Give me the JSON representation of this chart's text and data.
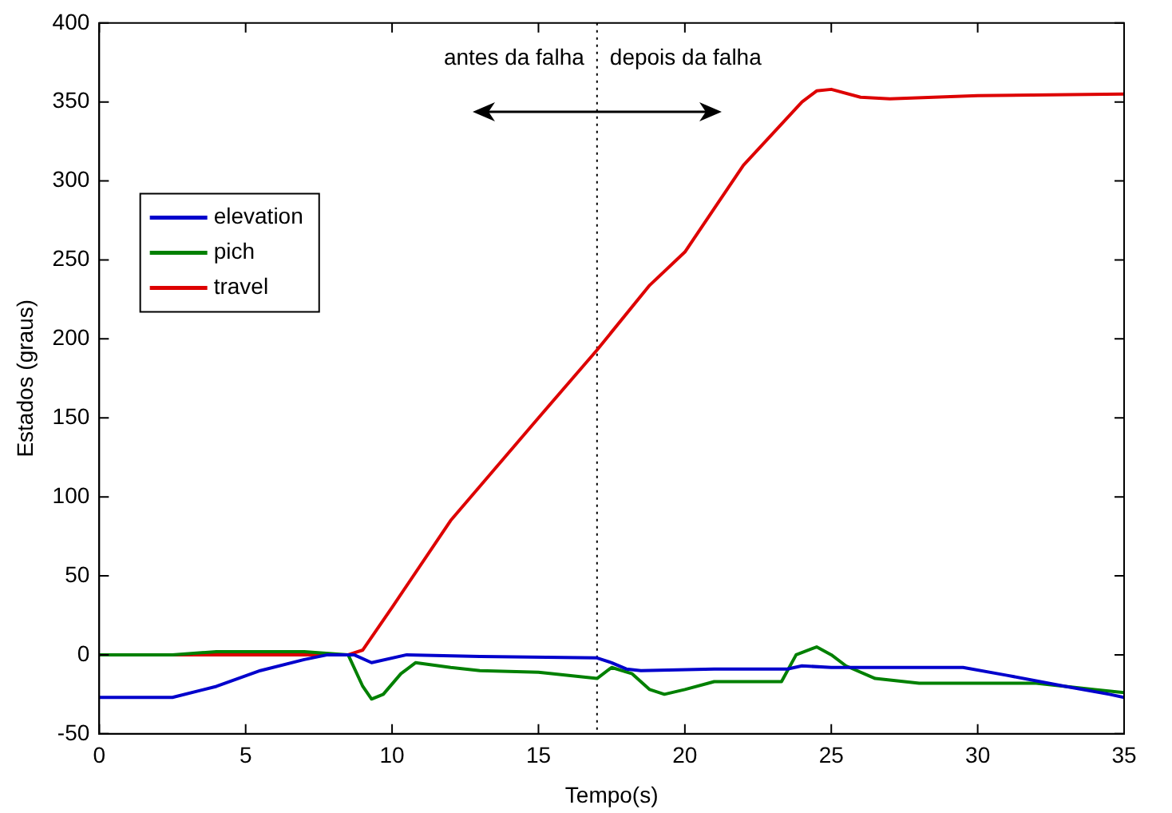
{
  "chart_data": {
    "type": "line",
    "xlabel": "Tempo(s)",
    "ylabel": "Estados (graus)",
    "xlim": [
      0,
      35
    ],
    "xticks": [
      0,
      5,
      10,
      15,
      20,
      25,
      30,
      35
    ],
    "ylim": [
      -50,
      400
    ],
    "yticks": [
      -50,
      0,
      50,
      100,
      150,
      200,
      250,
      300,
      350,
      400
    ],
    "grid": false,
    "legend": "top left",
    "marker": "none",
    "line_style": "solid",
    "series": [
      {
        "name": "elevation",
        "color": "#0000cc",
        "x": [
          0,
          2.5,
          4,
          5.5,
          7,
          7.8,
          8.7,
          9.3,
          10.5,
          13,
          17,
          17.5,
          18,
          18.5,
          21,
          23.5,
          24,
          25,
          29.5,
          31,
          33,
          34.5,
          35
        ],
        "values": [
          -27,
          -27,
          -20,
          -10,
          -3,
          0,
          0,
          -5,
          0,
          -1,
          -2,
          -5,
          -9,
          -10,
          -9,
          -9,
          -7,
          -8,
          -8,
          -13,
          -20,
          -25,
          -27
        ]
      },
      {
        "name": "pich",
        "color": "#008000",
        "x": [
          0,
          2.5,
          4,
          7,
          8.5,
          9,
          9.3,
          9.7,
          10.3,
          10.8,
          12,
          13,
          15,
          17,
          17.5,
          18.2,
          18.8,
          19.3,
          20,
          21,
          23.3,
          23.8,
          24.5,
          25,
          25.5,
          26.5,
          28,
          32,
          34,
          35
        ],
        "values": [
          0,
          0,
          2,
          2,
          0,
          -20,
          -28,
          -25,
          -12,
          -5,
          -8,
          -10,
          -11,
          -15,
          -8,
          -12,
          -22,
          -25,
          -22,
          -17,
          -17,
          0,
          5,
          0,
          -7,
          -15,
          -18,
          -18,
          -22,
          -24
        ]
      },
      {
        "name": "travel",
        "color": "#dd0000",
        "x": [
          0,
          8.5,
          9,
          10,
          12,
          15,
          17,
          18.8,
          20,
          22,
          24,
          24.5,
          25,
          26,
          27,
          30,
          35
        ],
        "values": [
          0,
          0,
          3,
          30,
          85,
          150,
          193,
          234,
          255,
          310,
          350,
          357,
          358,
          353,
          352,
          354,
          355
        ]
      }
    ],
    "ref_lines": [
      {
        "axis": "x",
        "value": 17,
        "label": null,
        "color": "#000000",
        "line_style": "dotted"
      }
    ],
    "annotations": [
      "antes da falha",
      "depois da falha"
    ]
  }
}
